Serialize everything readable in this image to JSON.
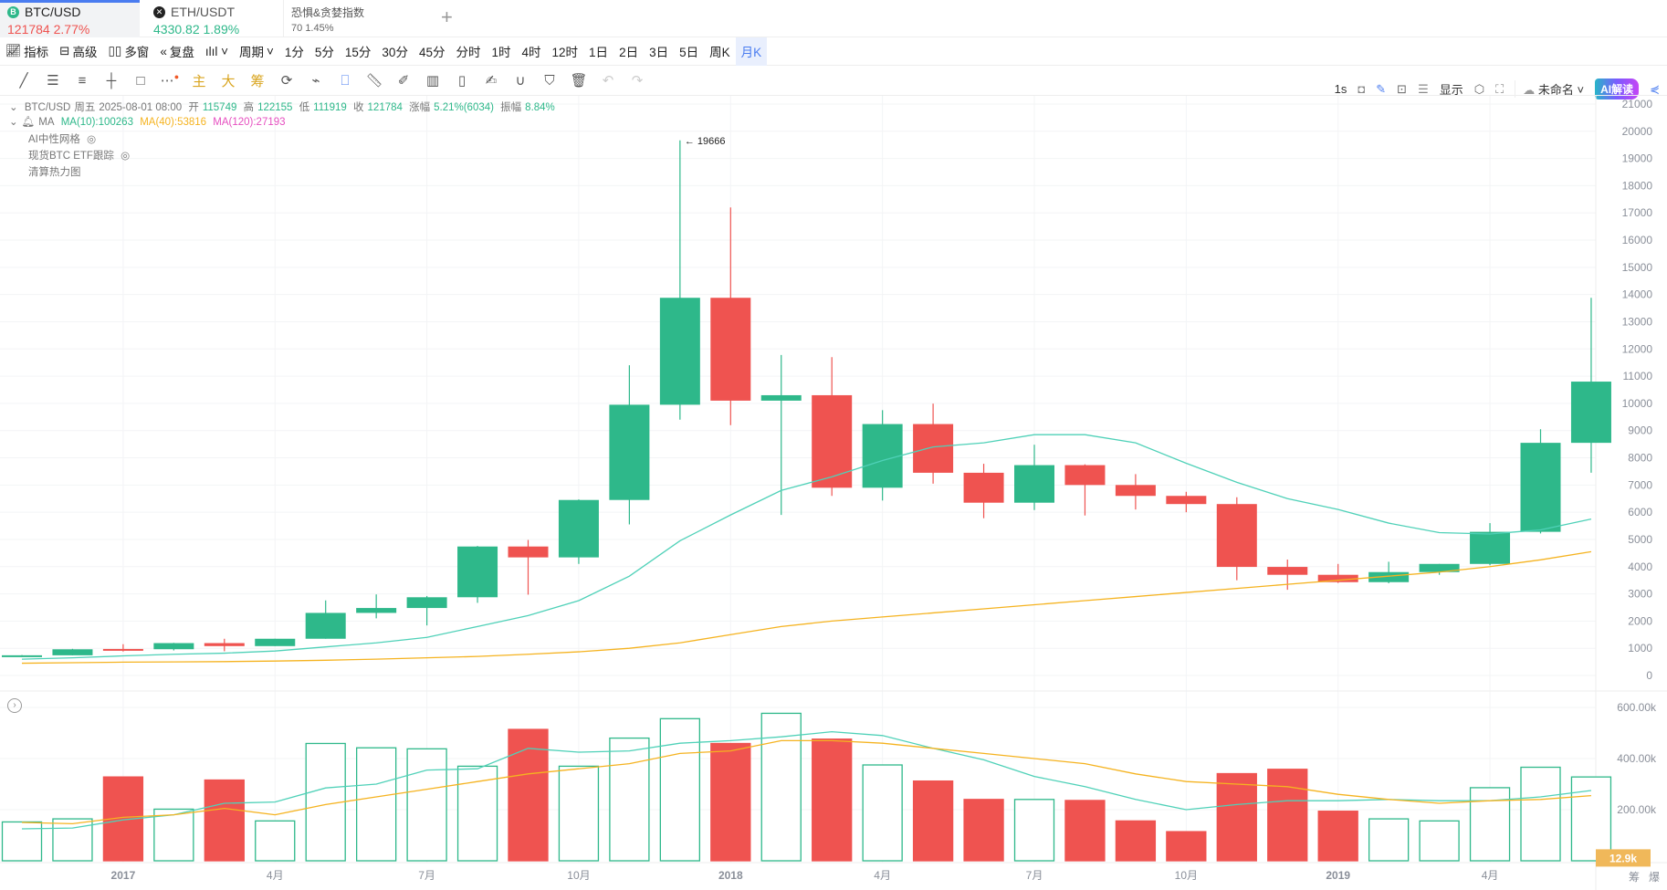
{
  "tabs": [
    {
      "name": "BTC/USD",
      "price": "121784",
      "change": "2.77%",
      "icon": "bitcoin-icon"
    },
    {
      "name": "ETH/USDT",
      "price": "4330.82",
      "change": "1.89%",
      "icon": "eth-icon"
    },
    {
      "name": "恐惧&贪婪指数",
      "price": "70",
      "change": "1.45%"
    }
  ],
  "add_tab": "+",
  "toolbar": {
    "items": [
      "指标",
      "高级",
      "多窗",
      "复盘",
      "周期"
    ],
    "intervals": [
      "1分",
      "5分",
      "15分",
      "30分",
      "45分",
      "分时",
      "1时",
      "4时",
      "12时",
      "1日",
      "2日",
      "3日",
      "5日",
      "周K",
      "月K"
    ],
    "selected_interval": "月K",
    "right": {
      "refresh": "1s",
      "display": "显示",
      "layout_name": "未命名",
      "ai": "AI解读"
    }
  },
  "draw_tools": {
    "main": "主",
    "big": "大",
    "chip": "筹"
  },
  "legend": {
    "symbol": "BTC/USD",
    "weekday": "周五",
    "datetime": "2025-08-01 08:00",
    "open_label": "开",
    "open": "115749",
    "high_label": "高",
    "high": "122155",
    "low_label": "低",
    "low": "111919",
    "close_label": "收",
    "close": "121784",
    "chg_label": "涨幅",
    "chg": "5.21%(6034)",
    "amp_label": "振幅",
    "amp": "8.84%",
    "ma_label": "MA",
    "ma10": "MA(10):100263",
    "ma40": "MA(40):53816",
    "ma120": "MA(120):27193",
    "overlays": [
      "AI中性网格",
      "现货BTC ETF跟踪",
      "清算热力图"
    ]
  },
  "colors": {
    "up": "#2eb88a",
    "down": "#ef5350",
    "ma10": "#4fd1b8",
    "ma40": "#f5b320",
    "ma120": "#e64fc0",
    "accent": "#4a7cf0"
  },
  "chart_data": {
    "type": "candlestick",
    "months": [
      "2016-11",
      "2016-12",
      "2017-01",
      "2017-02",
      "2017-03",
      "2017-04",
      "2017-05",
      "2017-06",
      "2017-07",
      "2017-08",
      "2017-09",
      "2017-10",
      "2017-11",
      "2017-12",
      "2018-01",
      "2018-02",
      "2018-03",
      "2018-04",
      "2018-05",
      "2018-06",
      "2018-07",
      "2018-08",
      "2018-09",
      "2018-10",
      "2018-11",
      "2018-12",
      "2019-01",
      "2019-02",
      "2019-03",
      "2019-04",
      "2019-05",
      "2019-06"
    ],
    "ohlc": [
      [
        698,
        752,
        680,
        742
      ],
      [
        742,
        979,
        740,
        963
      ],
      [
        975,
        1150,
        880,
        965
      ],
      [
        965,
        1200,
        920,
        1190
      ],
      [
        1190,
        1350,
        890,
        1080
      ],
      [
        1080,
        1350,
        1080,
        1350
      ],
      [
        1350,
        2760,
        1350,
        2300
      ],
      [
        2300,
        2980,
        2100,
        2480
      ],
      [
        2480,
        2920,
        1840,
        2875
      ],
      [
        2875,
        4760,
        2670,
        4740
      ],
      [
        4740,
        4980,
        2970,
        4340
      ],
      [
        4340,
        6470,
        4100,
        6450
      ],
      [
        6450,
        11400,
        5550,
        9950
      ],
      [
        9950,
        19666,
        9400,
        13880
      ],
      [
        13880,
        17200,
        9200,
        10100
      ],
      [
        10100,
        11780,
        5900,
        10300
      ],
      [
        10300,
        11700,
        6600,
        6900
      ],
      [
        6900,
        9750,
        6430,
        9240
      ],
      [
        9240,
        9990,
        7050,
        7450
      ],
      [
        7450,
        7780,
        5780,
        6350
      ],
      [
        6350,
        8480,
        6080,
        7730
      ],
      [
        7730,
        7760,
        5880,
        7000
      ],
      [
        7000,
        7400,
        6100,
        6600
      ],
      [
        6600,
        6750,
        6000,
        6300
      ],
      [
        6300,
        6550,
        3500,
        3990
      ],
      [
        3990,
        4260,
        3150,
        3700
      ],
      [
        3700,
        4100,
        3400,
        3430
      ],
      [
        3430,
        4180,
        3390,
        3800
      ],
      [
        3800,
        4100,
        3700,
        4100
      ],
      [
        4100,
        5600,
        4050,
        5280
      ],
      [
        5280,
        9050,
        5220,
        8550
      ],
      [
        8550,
        13880,
        7450,
        10800
      ]
    ],
    "ma10": [
      600,
      650,
      720,
      780,
      820,
      900,
      1050,
      1200,
      1400,
      1800,
      2200,
      2750,
      3650,
      4950,
      5900,
      6800,
      7300,
      7900,
      8400,
      8550,
      8850,
      8850,
      8550,
      7800,
      7100,
      6500,
      6100,
      5600,
      5250,
      5200,
      5350,
      5750
    ],
    "ma40": [
      450,
      470,
      490,
      500,
      510,
      530,
      560,
      600,
      650,
      700,
      780,
      870,
      1000,
      1200,
      1500,
      1800,
      2000,
      2150,
      2300,
      2450,
      2600,
      2750,
      2900,
      3050,
      3200,
      3350,
      3500,
      3650,
      3800,
      4000,
      4250,
      4550
    ],
    "volume_k": [
      152,
      164,
      328,
      202,
      316,
      156,
      459,
      442,
      438,
      370,
      514,
      370,
      480,
      556,
      459,
      577,
      476,
      375,
      312,
      240,
      240,
      236,
      156,
      114,
      341,
      358,
      194,
      164,
      156,
      286,
      366,
      328
    ],
    "vol_ma_a_k": [
      125,
      128,
      160,
      180,
      225,
      230,
      285,
      300,
      355,
      360,
      440,
      425,
      430,
      460,
      470,
      485,
      505,
      490,
      440,
      395,
      330,
      290,
      240,
      200,
      220,
      235,
      235,
      240,
      235,
      235,
      250,
      275
    ],
    "vol_ma_b_k": [
      150,
      145,
      170,
      180,
      205,
      180,
      220,
      250,
      280,
      310,
      340,
      360,
      380,
      420,
      430,
      470,
      470,
      460,
      440,
      420,
      400,
      380,
      340,
      310,
      300,
      290,
      260,
      240,
      225,
      235,
      240,
      255
    ],
    "price_ticks": [
      "21000",
      "20000",
      "19000",
      "18000",
      "17000",
      "16000",
      "15000",
      "14000",
      "13000",
      "12000",
      "11000",
      "10000",
      "9000",
      "8000",
      "7000",
      "6000",
      "5000",
      "4000",
      "3000",
      "2000",
      "1000",
      "0"
    ],
    "ylim": [
      0,
      21000
    ],
    "volume_ticks": [
      "600.00k",
      "400.00k",
      "200.00k"
    ],
    "x_ticks": [
      {
        "label": "2017",
        "index": 2
      },
      {
        "label": "4月",
        "index": 5
      },
      {
        "label": "7月",
        "index": 8
      },
      {
        "label": "10月",
        "index": 11
      },
      {
        "label": "2018",
        "index": 14
      },
      {
        "label": "4月",
        "index": 17
      },
      {
        "label": "7月",
        "index": 20
      },
      {
        "label": "10月",
        "index": 23
      },
      {
        "label": "2019",
        "index": 26
      },
      {
        "label": "4月",
        "index": 29
      }
    ],
    "high_annotation": "← 19666",
    "last_volume": "12.9k",
    "bottom_right": [
      "筹",
      "爆"
    ]
  }
}
